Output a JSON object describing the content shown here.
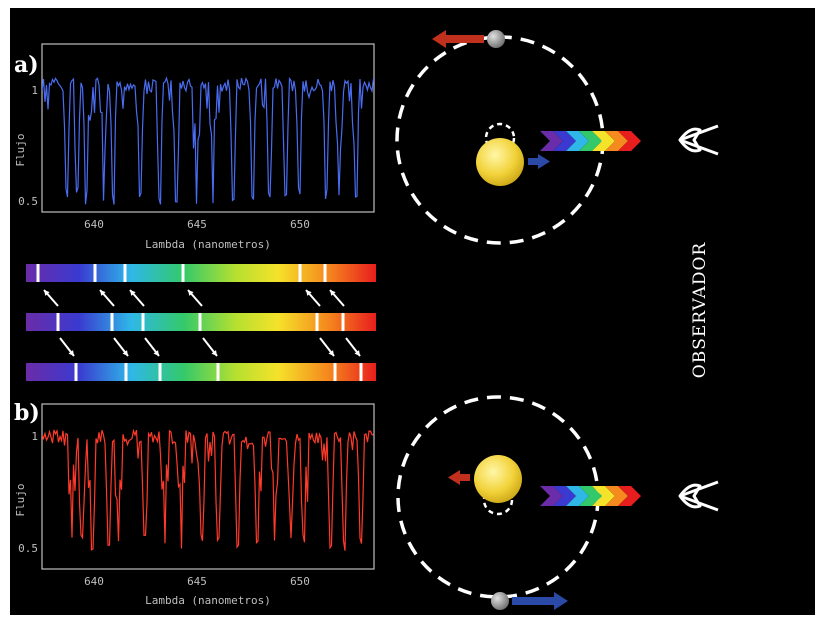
{
  "panels": {
    "a": {
      "letter": "a)",
      "ylabel": "Flujo",
      "xlabel": "Lambda (nanometros)",
      "ytick_labels": [
        "1",
        "0.5"
      ],
      "xtick_labels": [
        "640",
        "645",
        "650"
      ],
      "line_color": "#4a6cf0"
    },
    "b": {
      "letter": "b)",
      "ylabel": "Flujo",
      "xlabel": "Lambda (nanometros)",
      "ytick_labels": [
        "1",
        "0.5"
      ],
      "xtick_labels": [
        "640",
        "645",
        "650"
      ],
      "line_color": "#ff3a2a"
    }
  },
  "observer_label": "OBSERVADOR",
  "colors": {
    "background": "#000000",
    "orbit": "#ffffff",
    "star": "#f2d23a",
    "planet": "#9a9a9a",
    "redshift_arrow": "#c0301c",
    "blueshift_arrow": "#2b4aa8"
  }
}
